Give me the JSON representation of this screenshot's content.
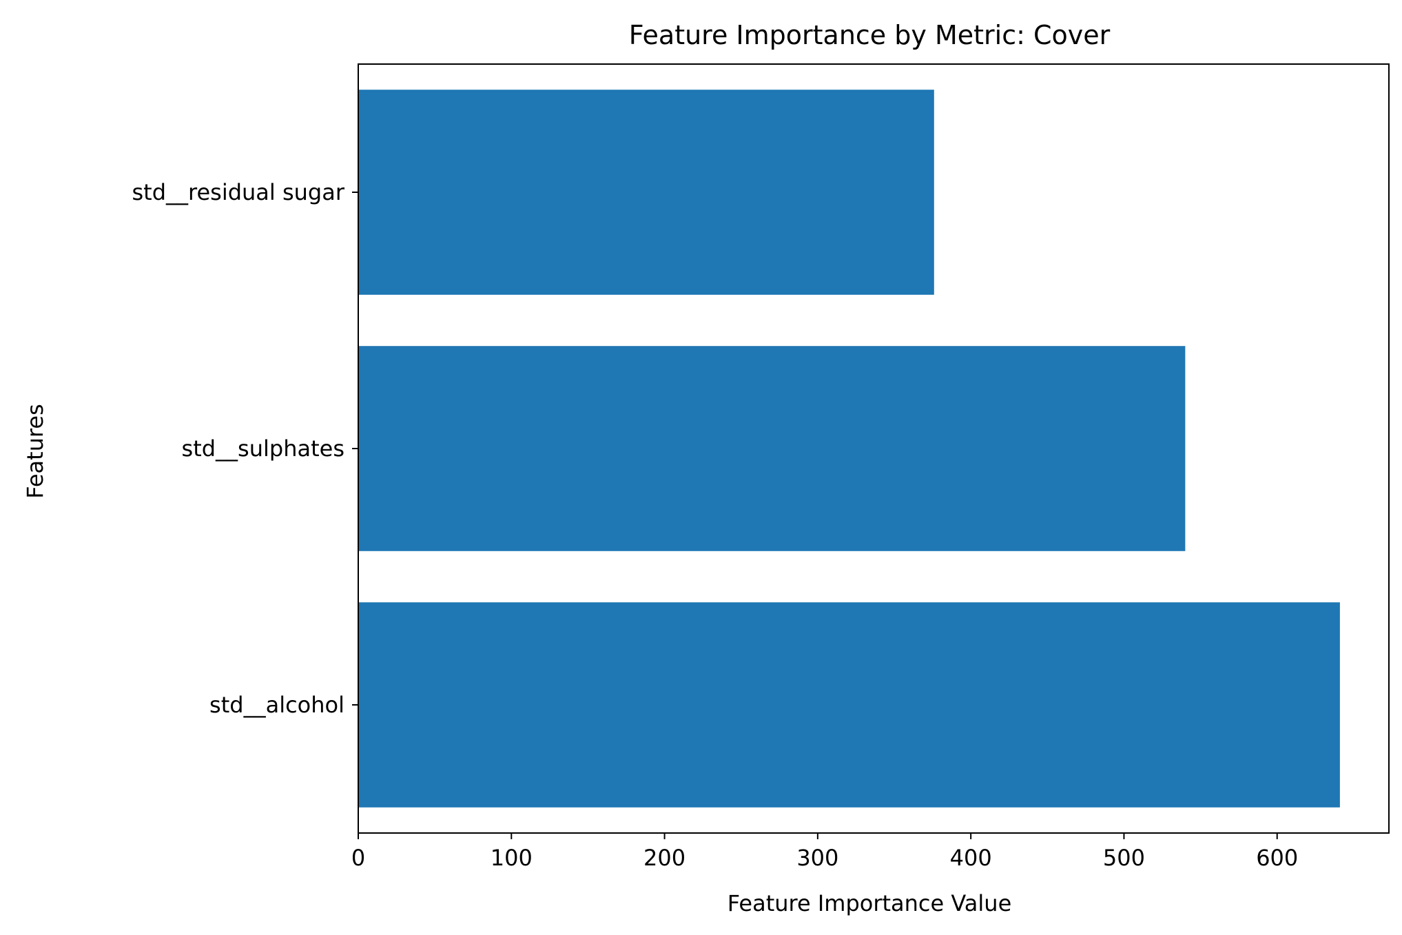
{
  "chart_data": {
    "type": "bar",
    "orientation": "horizontal",
    "title": "Feature Importance by Metric: Cover",
    "xlabel": "Feature Importance Value",
    "ylabel": "Features",
    "categories": [
      "std__residual sugar",
      "std__sulphates",
      "std__alcohol"
    ],
    "values": [
      376,
      540,
      641
    ],
    "xlim": [
      0,
      673
    ],
    "xticks": [
      0,
      100,
      200,
      300,
      400,
      500,
      600
    ],
    "bar_color": "#1f77b4",
    "grid": false,
    "legend": "none"
  }
}
